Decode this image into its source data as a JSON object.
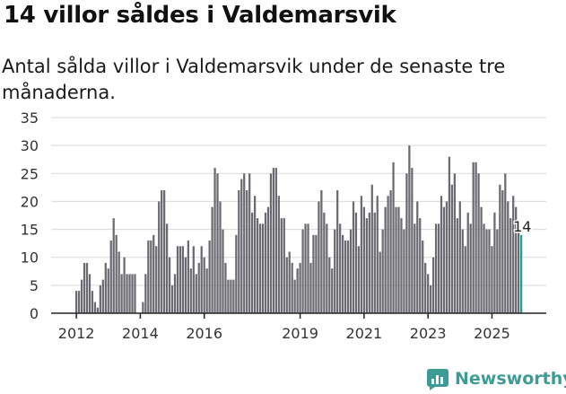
{
  "title": "14 villor såldes i Valdemarsvik",
  "subtitle": "Antal sålda villor i Valdemarsvik under de senaste tre månaderna.",
  "brand": {
    "name": "Newsworthy",
    "icon": "newsworthy-logo-icon"
  },
  "colors": {
    "bar": "#6a6a70",
    "highlight": "#2a9d8f",
    "grid": "#d9d9d9",
    "axis": "#222222",
    "brand": "#3d9b95"
  },
  "chart_data": {
    "type": "bar",
    "title": "14 villor såldes i Valdemarsvik",
    "xlabel": "",
    "ylabel": "",
    "ylim": [
      0,
      35
    ],
    "yticks": [
      "0",
      "5",
      "10",
      "15",
      "20",
      "25",
      "30",
      "35"
    ],
    "xticks": [
      {
        "label": "2012",
        "month_index": 0
      },
      {
        "label": "2014",
        "month_index": 24
      },
      {
        "label": "2016",
        "month_index": 48
      },
      {
        "label": "2019",
        "month_index": 84
      },
      {
        "label": "2021",
        "month_index": 108
      },
      {
        "label": "2023",
        "month_index": 132
      },
      {
        "label": "2025",
        "month_index": 156
      }
    ],
    "series": [
      {
        "name": "Antal sålda villor (rullande tre månader)",
        "values": [
          4,
          4,
          6,
          9,
          9,
          7,
          4,
          2,
          1,
          5,
          6,
          9,
          8,
          13,
          17,
          14,
          11,
          7,
          10,
          7,
          7,
          7,
          7,
          0,
          0,
          2,
          7,
          13,
          13,
          14,
          12,
          20,
          22,
          22,
          16,
          10,
          5,
          7,
          12,
          12,
          12,
          10,
          13,
          8,
          12,
          7,
          9,
          12,
          10,
          8,
          13,
          19,
          26,
          25,
          20,
          15,
          9,
          6,
          6,
          6,
          14,
          22,
          24,
          25,
          22,
          25,
          18,
          21,
          17,
          16,
          16,
          18,
          19,
          25,
          26,
          26,
          21,
          17,
          17,
          10,
          11,
          9,
          6,
          8,
          9,
          15,
          16,
          16,
          9,
          14,
          14,
          20,
          22,
          18,
          16,
          10,
          8,
          15,
          22,
          16,
          14,
          13,
          13,
          15,
          20,
          18,
          12,
          21,
          19,
          17,
          18,
          23,
          18,
          21,
          11,
          15,
          19,
          21,
          22,
          27,
          19,
          19,
          17,
          15,
          25,
          30,
          26,
          16,
          20,
          17,
          13,
          9,
          7,
          5,
          10,
          16,
          16,
          21,
          19,
          20,
          28,
          23,
          25,
          17,
          20,
          15,
          12,
          18,
          16,
          27,
          27,
          25,
          19,
          16,
          15,
          15,
          12,
          18,
          15,
          23,
          22,
          25,
          20,
          17,
          21,
          19,
          16,
          14
        ]
      }
    ],
    "annotations": [
      {
        "label": "14",
        "month_index": 167
      }
    ]
  }
}
